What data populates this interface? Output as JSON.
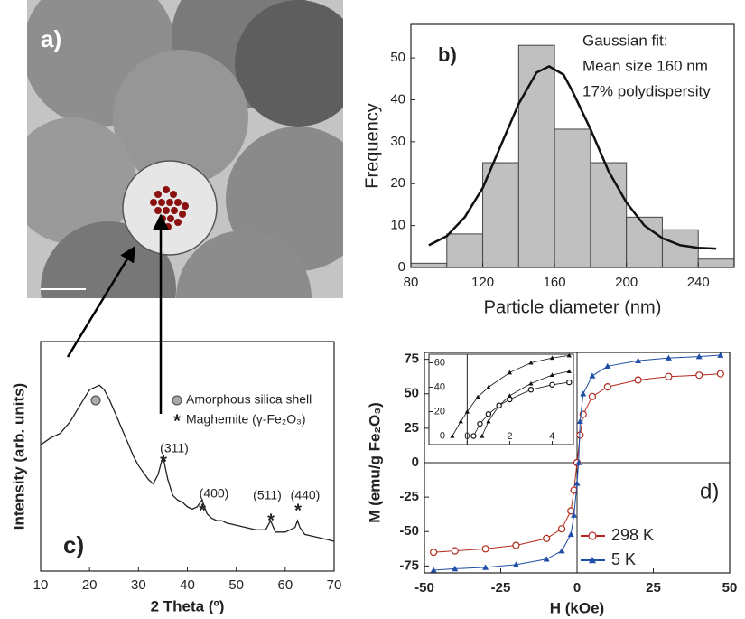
{
  "chart_data": [
    {
      "type": "image",
      "panel_label": "a)"
    },
    {
      "type": "histogram",
      "panel_label": "b)",
      "bins": [
        80,
        100,
        120,
        140,
        160,
        180,
        200,
        220,
        240,
        260
      ],
      "counts": [
        1,
        8,
        25,
        53,
        33,
        25,
        12,
        9,
        2
      ],
      "color": "#c0c0c0",
      "fit": {
        "x": [
          90,
          100,
          110,
          120,
          130,
          140,
          150,
          157,
          165,
          170,
          180,
          190,
          200,
          210,
          220,
          230,
          240,
          250
        ],
        "y": [
          5.3,
          7.5,
          12,
          19,
          29,
          39,
          46.5,
          48,
          46,
          42,
          33,
          23,
          15.5,
          10,
          7,
          5.3,
          4.7,
          4.5
        ]
      },
      "annotations": [
        "Gaussian fit:",
        "Mean size 160 nm",
        "17% polydispersity"
      ],
      "x_label": "Particle diameter (nm)",
      "y_label": "Frequency",
      "xlim": [
        80,
        260
      ],
      "ylim": [
        0,
        58
      ],
      "xticks": [
        80,
        120,
        160,
        200,
        240
      ],
      "yticks": [
        0,
        10,
        20,
        30,
        40,
        50
      ]
    },
    {
      "type": "line",
      "panel_label": "c)",
      "x": [
        10,
        12,
        14,
        16,
        18,
        20,
        21,
        22,
        23,
        24,
        25,
        26,
        27,
        28,
        29,
        30,
        31,
        32,
        33,
        34,
        35,
        36,
        37,
        38,
        39,
        40,
        41,
        42,
        43,
        44,
        45,
        46,
        47,
        48,
        50,
        52,
        54,
        56,
        57,
        58,
        60,
        62,
        62.5,
        63,
        64,
        66,
        68,
        70
      ],
      "values": [
        55,
        58,
        60,
        65,
        72,
        79,
        80,
        81,
        79,
        75,
        70,
        65,
        60,
        55,
        50,
        46,
        43,
        40,
        38,
        42,
        50,
        40,
        33,
        31,
        30,
        28,
        27,
        28,
        31,
        25,
        23,
        22,
        22,
        21,
        20,
        19,
        18,
        18,
        22,
        17,
        17,
        19,
        22,
        19,
        16,
        15,
        14,
        13
      ],
      "color": "#222222",
      "peaks": [
        "(311)",
        "(400)",
        "(511)",
        "(440)"
      ],
      "peak_marker": "*",
      "legend": [
        "Amorphous silica shell",
        "Maghemite (γ-Fe₂O₃)"
      ],
      "x_label": "2 Theta (º)",
      "y_label": "Intensity (arb. units)",
      "xlim": [
        10,
        70
      ],
      "ylim": [
        0,
        100
      ],
      "xticks": [
        10,
        20,
        30,
        40,
        50,
        60,
        70
      ]
    },
    {
      "type": "hysteresis",
      "panel_label": "d)",
      "series": [
        {
          "name": "298 K",
          "color": "#b22a1e",
          "marker": "circle",
          "x": [
            -47,
            -40,
            -30,
            -20,
            -10,
            -5,
            -2,
            -1,
            0,
            1,
            2,
            5,
            10,
            20,
            30,
            40,
            47
          ],
          "values": [
            -65,
            -64,
            -62.5,
            -60,
            -55,
            -48,
            -35,
            -20,
            0,
            20,
            35,
            48,
            55,
            60,
            62.5,
            63.5,
            64.5
          ]
        },
        {
          "name": "5 K",
          "color": "#1f4fa8",
          "marker": "triangle",
          "x": [
            -47,
            -40,
            -30,
            -20,
            -10,
            -5,
            -2,
            -1,
            0,
            0.5,
            1,
            2,
            5,
            10,
            20,
            30,
            40,
            47
          ],
          "values": [
            -78,
            -77,
            -76,
            -74,
            -70,
            -64,
            -52,
            -38,
            -15,
            0,
            30,
            50,
            63,
            70,
            74,
            76,
            77,
            78
          ]
        }
      ],
      "x_label": "H (kOe)",
      "y_label": "M (emu/g Fe₂O₃)",
      "xlim": [
        -50,
        50
      ],
      "ylim": [
        -80,
        80
      ],
      "xticks": [
        -50,
        -25,
        0,
        25,
        50
      ],
      "yticks": [
        -75,
        -50,
        -25,
        0,
        25,
        50,
        75
      ],
      "inset": {
        "xlim": [
          -1.8,
          5
        ],
        "ylim": [
          -7,
          67
        ],
        "xticks": [
          0,
          2,
          4
        ],
        "yticks": [
          0,
          20,
          40,
          60
        ],
        "series": [
          {
            "color": "#111111",
            "marker": "triangle",
            "x": [
              0.7,
              1,
              1.5,
              2,
              3,
              4,
              4.8
            ],
            "values": [
              0,
              12,
              25,
              33,
              43,
              50,
              53
            ]
          },
          {
            "color": "#111111",
            "marker": "triangle",
            "x": [
              -0.7,
              -0.3,
              0,
              0.5,
              1,
              2,
              3,
              4,
              4.8
            ],
            "values": [
              0,
              12,
              20,
              32,
              40,
              52,
              60,
              64,
              66
            ]
          },
          {
            "color": "#111111",
            "marker": "circle",
            "x": [
              0.3,
              0.6,
              1,
              1.5,
              2,
              3,
              4,
              4.8
            ],
            "values": [
              0,
              10,
              18,
              25,
              30,
              38,
              42,
              44
            ]
          }
        ]
      }
    }
  ]
}
